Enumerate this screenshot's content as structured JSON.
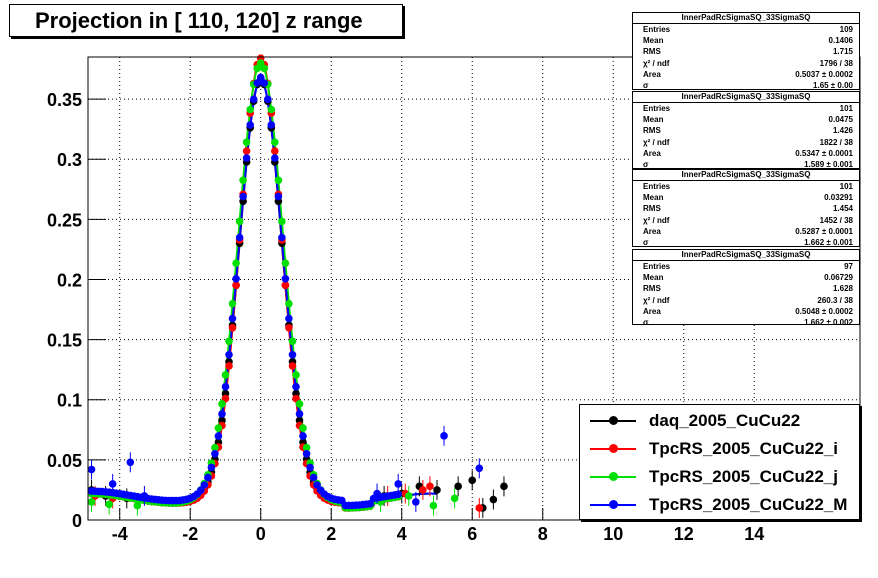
{
  "title": "Projection in [ 110, 120] z range",
  "stats": [
    {
      "name": "InnerPadRcSigmaSQ_33SigmaSQ",
      "rows": [
        {
          "k": "Entries",
          "v": "109"
        },
        {
          "k": "Mean",
          "v": "0.1406"
        },
        {
          "k": "RMS",
          "v": "1.715"
        },
        {
          "k": "χ² / ndf",
          "v": "1796 / 38"
        },
        {
          "k": "Area",
          "v": "0.5037 ± 0.0002"
        },
        {
          "k": "σ",
          "v": "1.65 ± 0.00"
        }
      ]
    },
    {
      "name": "InnerPadRcSigmaSQ_33SigmaSQ",
      "rows": [
        {
          "k": "Entries",
          "v": "101"
        },
        {
          "k": "Mean",
          "v": "0.0475"
        },
        {
          "k": "RMS",
          "v": "1.426"
        },
        {
          "k": "χ² / ndf",
          "v": "1822 / 38"
        },
        {
          "k": "Area",
          "v": "0.5347 ± 0.0001"
        },
        {
          "k": "σ",
          "v": "1.589 ± 0.001"
        }
      ]
    },
    {
      "name": "InnerPadRcSigmaSQ_33SigmaSQ",
      "rows": [
        {
          "k": "Entries",
          "v": "101"
        },
        {
          "k": "Mean",
          "v": "0.03291"
        },
        {
          "k": "RMS",
          "v": "1.454"
        },
        {
          "k": "χ² / ndf",
          "v": "1452 / 38"
        },
        {
          "k": "Area",
          "v": "0.5287 ± 0.0001"
        },
        {
          "k": "σ",
          "v": "1.662 ± 0.001"
        }
      ]
    },
    {
      "name": "InnerPadRcSigmaSQ_33SigmaSQ",
      "rows": [
        {
          "k": "Entries",
          "v": "97"
        },
        {
          "k": "Mean",
          "v": "0.06729"
        },
        {
          "k": "RMS",
          "v": "1.628"
        },
        {
          "k": "χ² / ndf",
          "v": "260.3 / 38"
        },
        {
          "k": "Area",
          "v": "0.5048 ± 0.0002"
        },
        {
          "k": "σ",
          "v": "1.662 ± 0.002"
        }
      ]
    }
  ],
  "chart_data": {
    "type": "scatter",
    "title": "Projection in [ 110, 120] z range",
    "xlabel": "",
    "ylabel": "",
    "xlim": [
      -4.9,
      17
    ],
    "ylim": [
      0,
      0.385
    ],
    "xticks": [
      -4,
      -2,
      0,
      2,
      4,
      6,
      8,
      10,
      12,
      14
    ],
    "yticks": [
      0,
      0.05,
      0.1,
      0.15,
      0.2,
      0.25,
      0.3,
      0.35
    ],
    "grid": true,
    "legend_position": "bottom-right",
    "series": [
      {
        "name": "daq_2005_CuCu22",
        "color": "#000000",
        "peak": 0.363,
        "width": 0.6,
        "tail": [
          [
            -4.8,
            0.025
          ],
          [
            -4.4,
            0.02
          ],
          [
            -3.8,
            0.018
          ],
          [
            3.5,
            0.02
          ],
          [
            4.0,
            0.022
          ],
          [
            4.5,
            0.028
          ],
          [
            5.0,
            0.025
          ],
          [
            5.6,
            0.028
          ],
          [
            6.0,
            0.033
          ],
          [
            6.3,
            0.01
          ],
          [
            6.6,
            0.017
          ],
          [
            6.9,
            0.028
          ]
        ]
      },
      {
        "name": "TpcRS_2005_CuCu22_i",
        "color": "#ff0000",
        "peak": 0.38,
        "width": 0.58,
        "tail": [
          [
            -4.7,
            0.02
          ],
          [
            -4.2,
            0.018
          ],
          [
            3.6,
            0.02
          ],
          [
            4.1,
            0.022
          ],
          [
            4.6,
            0.025
          ],
          [
            4.8,
            0.028
          ],
          [
            6.2,
            0.01
          ]
        ]
      },
      {
        "name": "TpcRS_2005_CuCu22_j",
        "color": "#00e000",
        "peak": 0.376,
        "width": 0.63,
        "tail": [
          [
            -4.8,
            0.015
          ],
          [
            -4.3,
            0.013
          ],
          [
            -3.5,
            0.012
          ],
          [
            3.4,
            0.015
          ],
          [
            4.2,
            0.02
          ],
          [
            4.9,
            0.012
          ],
          [
            5.5,
            0.018
          ]
        ]
      },
      {
        "name": "TpcRS_2005_CuCu22_M",
        "color": "#0000ff",
        "peak": 0.362,
        "width": 0.61,
        "tail": [
          [
            -4.8,
            0.042
          ],
          [
            -4.2,
            0.03
          ],
          [
            -3.7,
            0.048
          ],
          [
            -3.3,
            0.02
          ],
          [
            3.3,
            0.022
          ],
          [
            3.9,
            0.03
          ],
          [
            4.4,
            0.015
          ],
          [
            5.2,
            0.07
          ],
          [
            6.2,
            0.043
          ]
        ]
      }
    ]
  }
}
